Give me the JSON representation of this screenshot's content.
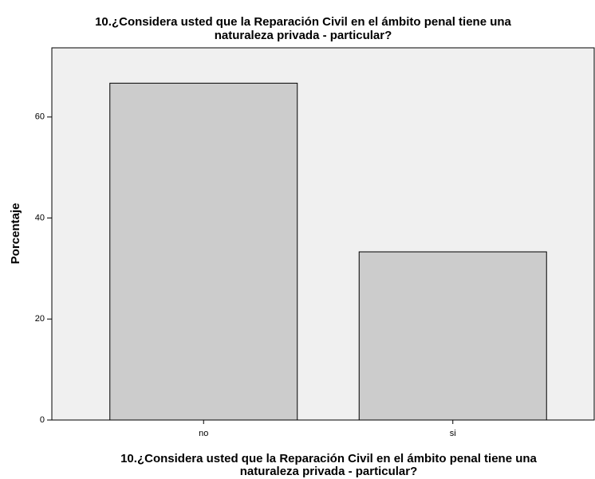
{
  "chart_data": {
    "type": "bar",
    "title": [
      "10.¿Considera usted que la Reparación Civil en el ámbito penal tiene una",
      "naturaleza privada - particular?"
    ],
    "xlabel": [
      "10.¿Considera usted que la Reparación Civil en el ámbito penal tiene una",
      "naturaleza privada - particular?"
    ],
    "ylabel": "Porcentaje",
    "categories": [
      "no",
      "si"
    ],
    "values": [
      66.7,
      33.3
    ],
    "color": "#cccccc",
    "ylim": [
      0,
      73.7
    ],
    "yticks": [
      0,
      20,
      40,
      60
    ]
  }
}
